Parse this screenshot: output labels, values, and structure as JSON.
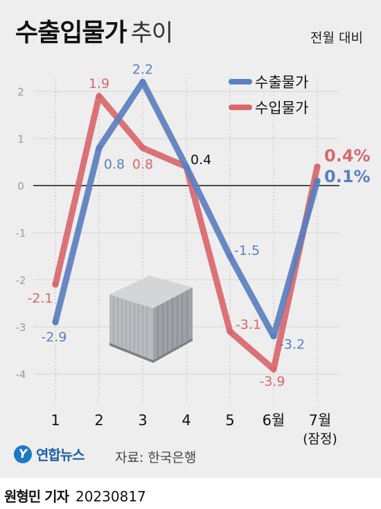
{
  "header": {
    "title_bold": "수출입물가",
    "title_light": "추이",
    "unit_note": "전월 대비"
  },
  "chart_data": {
    "type": "line",
    "categories": [
      "1",
      "2",
      "3",
      "4",
      "5",
      "6월",
      "7월"
    ],
    "category_sublabels": [
      "",
      "",
      "",
      "",
      "",
      "",
      "(잠정)"
    ],
    "ylim": [
      -4,
      2.5
    ],
    "yticks": [
      2,
      1,
      0,
      -1,
      -2,
      -3,
      -4
    ],
    "ytick_labels": [
      "2",
      "1",
      "0",
      "-1",
      "-2",
      "-3",
      "-4"
    ],
    "series": [
      {
        "name": "수출물가",
        "color": "#5b7fbf",
        "values": [
          -2.9,
          0.8,
          2.2,
          0.4,
          -1.5,
          -3.2,
          0.1
        ],
        "labels": [
          "-2.9",
          "0.8",
          "2.2",
          "",
          "-1.5",
          "-3.2",
          "0.1%"
        ]
      },
      {
        "name": "수입물가",
        "color": "#d9676d",
        "values": [
          -2.1,
          1.9,
          0.8,
          0.4,
          -3.1,
          -3.9,
          0.4
        ],
        "labels": [
          "-2.1",
          "1.9",
          "0.8",
          "",
          "-3.1",
          "-3.9",
          "0.4%"
        ]
      }
    ],
    "shared_labels": [
      "",
      "",
      "",
      "0.4",
      "",
      "",
      ""
    ],
    "legend_position": "top-right",
    "grid": true,
    "zero_line": true
  },
  "footer": {
    "logo_mark": "Y",
    "logo_text": "연합뉴스",
    "source": "자료: 한국은행"
  },
  "byline": {
    "name": "원형민 기자",
    "date": "20230817"
  },
  "icons": {
    "container": "shipping-container-icon"
  }
}
